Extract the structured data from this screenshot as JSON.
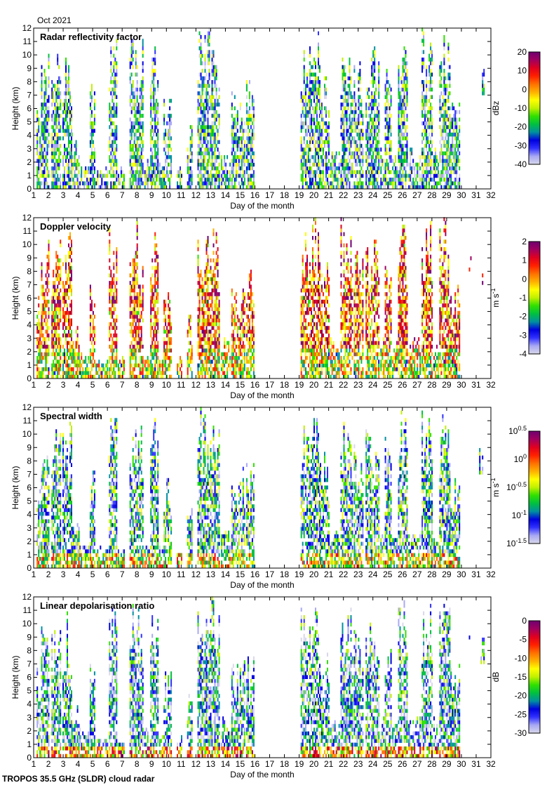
{
  "header": {
    "period": "Oct 2021"
  },
  "footer": {
    "instrument": "TROPOS 35.5 GHz (SLDR) cloud radar"
  },
  "chart_data": [
    {
      "type": "heatmap",
      "title": "Radar reflectivity factor",
      "xlabel": "Day of the month",
      "ylabel": "Height (km)",
      "xlim": [
        1,
        32
      ],
      "ylim": [
        0,
        12
      ],
      "colorbar": {
        "label": "dBz",
        "range": [
          -40,
          20
        ],
        "ticks": [
          "20",
          "10",
          "0",
          "-10",
          "-20",
          "-30",
          "-40"
        ]
      },
      "value_bias": 0.3
    },
    {
      "type": "heatmap",
      "title": "Doppler velocity",
      "xlabel": "Day of the month",
      "ylabel": "Height (km)",
      "xlim": [
        1,
        32
      ],
      "ylim": [
        0,
        12
      ],
      "colorbar": {
        "label": "m s-1",
        "range": [
          -4,
          2
        ],
        "ticks": [
          "2",
          "1",
          "0",
          "-1",
          "-2",
          "-3",
          "-4"
        ]
      },
      "value_bias": 0.68
    },
    {
      "type": "heatmap",
      "title": "Spectral width",
      "xlabel": "Day of the month",
      "ylabel": "Height (km)",
      "xlim": [
        1,
        32
      ],
      "ylim": [
        0,
        12
      ],
      "colorbar": {
        "label": "m s-1",
        "scale": "log",
        "range": [
          -1.5,
          0.5
        ],
        "ticks": [
          "10^0.5",
          "10^0",
          "10^-0.5",
          "10^-1",
          "10^-1.5"
        ]
      },
      "value_bias": 0.3
    },
    {
      "type": "heatmap",
      "title": "Linear depolarisation ratio",
      "xlabel": "Day of the month",
      "ylabel": "Height (km)",
      "xlim": [
        1,
        32
      ],
      "ylim": [
        0,
        12
      ],
      "colorbar": {
        "label": "dB",
        "range": [
          -30,
          0
        ],
        "ticks": [
          "0",
          "-5",
          "-10",
          "-15",
          "-20",
          "-25",
          "-30"
        ]
      },
      "value_bias": 0.25
    }
  ],
  "x_ticks": [
    "1",
    "2",
    "3",
    "4",
    "5",
    "6",
    "7",
    "8",
    "9",
    "10",
    "11",
    "12",
    "13",
    "14",
    "15",
    "16",
    "17",
    "18",
    "19",
    "20",
    "21",
    "22",
    "23",
    "24",
    "25",
    "26",
    "27",
    "28",
    "29",
    "30",
    "31",
    "32"
  ],
  "y_ticks": [
    "0",
    "1",
    "2",
    "3",
    "4",
    "5",
    "6",
    "7",
    "8",
    "9",
    "10",
    "11",
    "12"
  ],
  "cloud_events": [
    [
      1.2,
      1.45,
      0,
      7
    ],
    [
      1.5,
      2.05,
      0,
      10.5
    ],
    [
      2.2,
      2.85,
      0,
      10.5
    ],
    [
      2.95,
      3.55,
      0,
      10.8
    ],
    [
      3.55,
      4.1,
      0,
      4
    ],
    [
      4.1,
      4.7,
      0,
      2
    ],
    [
      4.8,
      5.15,
      0,
      8.3
    ],
    [
      5.2,
      6.0,
      0,
      1.5
    ],
    [
      6.1,
      6.65,
      0,
      12
    ],
    [
      6.7,
      7.1,
      0,
      1.5
    ],
    [
      7.5,
      8.45,
      0,
      12
    ],
    [
      8.5,
      8.8,
      0,
      2
    ],
    [
      8.9,
      9.45,
      0,
      11.2
    ],
    [
      9.5,
      9.7,
      0,
      2
    ],
    [
      9.8,
      10.3,
      0,
      7.3
    ],
    [
      10.7,
      11.0,
      0,
      1.5
    ],
    [
      11.4,
      11.75,
      0,
      5
    ],
    [
      12.1,
      13.25,
      0,
      12
    ],
    [
      13.25,
      13.6,
      0,
      11
    ],
    [
      13.7,
      14.3,
      0,
      3
    ],
    [
      14.4,
      15.3,
      0,
      7.3
    ],
    [
      15.4,
      15.9,
      0,
      8.5
    ],
    [
      19.1,
      19.3,
      0,
      12
    ],
    [
      19.4,
      20.4,
      0,
      12
    ],
    [
      20.4,
      21.0,
      0,
      8.5
    ],
    [
      21.1,
      21.7,
      0,
      3
    ],
    [
      21.8,
      22.65,
      0,
      12
    ],
    [
      22.7,
      23.3,
      0,
      10
    ],
    [
      23.5,
      24.45,
      0,
      11
    ],
    [
      24.5,
      24.75,
      0,
      3
    ],
    [
      24.8,
      25.25,
      0,
      10
    ],
    [
      25.3,
      25.6,
      0,
      3
    ],
    [
      25.7,
      26.35,
      0,
      12
    ],
    [
      26.4,
      27.2,
      0,
      3
    ],
    [
      27.3,
      28.05,
      0,
      12
    ],
    [
      28.1,
      28.4,
      0,
      3
    ],
    [
      28.5,
      29.25,
      0,
      12
    ],
    [
      29.25,
      29.85,
      0,
      7
    ],
    [
      30.5,
      30.65,
      8,
      10
    ],
    [
      31.2,
      31.5,
      7,
      9
    ]
  ],
  "colormap": [
    "#d8d8ea",
    "#a8a8f4",
    "#3030ff",
    "#0000e0",
    "#0090a0",
    "#00c040",
    "#30e000",
    "#c0f000",
    "#ffff00",
    "#ffb000",
    "#ff7000",
    "#ff2000",
    "#e00020",
    "#a00060",
    "#700070"
  ]
}
